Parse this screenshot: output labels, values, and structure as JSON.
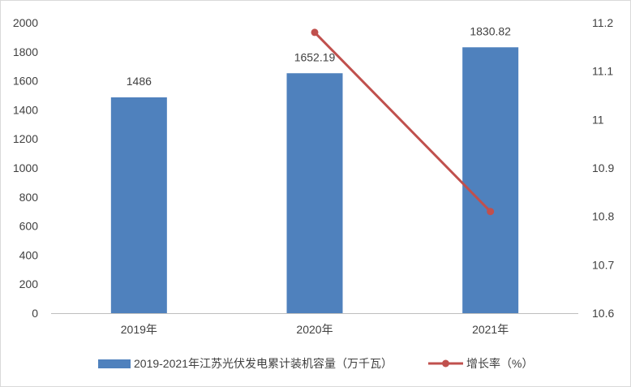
{
  "chart_data": {
    "type": "bar+line",
    "title": "",
    "categories": [
      "2019年",
      "2020年",
      "2021年"
    ],
    "series": [
      {
        "name": "2019-2021年江苏光伏发电累计装机容量（万千瓦）",
        "type": "bar",
        "axis": "left",
        "color": "#4f81bd",
        "values": [
          1486,
          1652.19,
          1830.82
        ],
        "data_labels": [
          "1486",
          "1652.19",
          "1830.82"
        ]
      },
      {
        "name": "增长率（%）",
        "type": "line",
        "axis": "right",
        "color": "#c0504d",
        "marker": "circle",
        "values": [
          null,
          11.18,
          10.81
        ]
      }
    ],
    "y_left": {
      "range": [
        0,
        2000
      ],
      "ticks": [
        "0",
        "200",
        "400",
        "600",
        "800",
        "1000",
        "1200",
        "1400",
        "1600",
        "1800",
        "2000"
      ]
    },
    "y_right": {
      "range": [
        10.6,
        11.2
      ],
      "ticks": [
        "10.6",
        "10.7",
        "10.8",
        "10.9",
        "11",
        "11.1",
        "11.2"
      ]
    },
    "grid": false,
    "legend_position": "bottom"
  }
}
